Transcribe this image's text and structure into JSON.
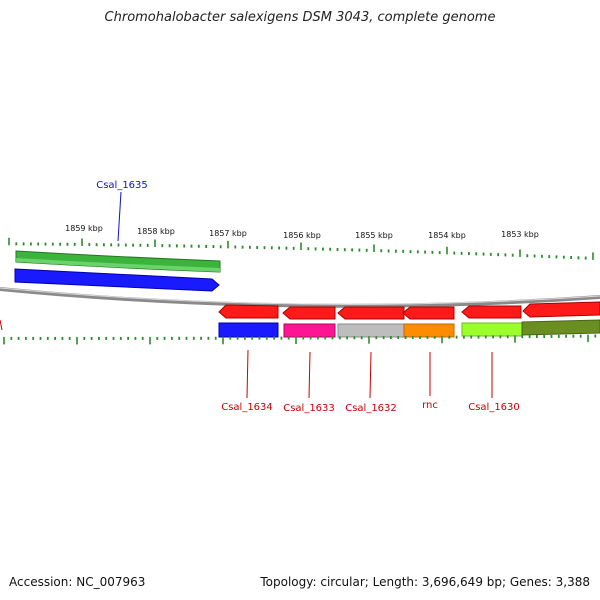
{
  "title": "Chromohalobacter salexigens DSM 3043, complete genome",
  "footer": {
    "accession": "Accession: NC_007963",
    "summary": "Topology: circular; Length: 3,696,649 bp; Genes: 3,388"
  },
  "colors": {
    "backbone": "#8a8a8a",
    "tick": "#2e8b2e",
    "label_top": "#1010cc",
    "label_bottom": "#cc0000"
  },
  "scale_labels": [
    "1859 kbp",
    "1858 kbp",
    "1857 kbp",
    "1856 kbp",
    "1855 kbp",
    "1854 kbp",
    "1853 kbp"
  ],
  "labeled_genes": [
    {
      "name": "Csal_1635",
      "color": "#1010cc"
    },
    {
      "name": "Csal_1634",
      "color": "#cc0000"
    },
    {
      "name": "Csal_1633",
      "color": "#cc0000"
    },
    {
      "name": "Csal_1632",
      "color": "#cc0000"
    },
    {
      "name": "rnc",
      "color": "#cc0000"
    },
    {
      "name": "Csal_1630",
      "color": "#cc0000"
    }
  ],
  "feature_colors": {
    "forward_cds_track": [
      "#3cb43c",
      "#1a1aff"
    ],
    "reverse_cds_track": [
      "#ff1a1a"
    ],
    "category_track": [
      "#1a1aff",
      "#ff1493",
      "#bdbdbd",
      "#ff8c00",
      "#9aff2a",
      "#6b8e23"
    ]
  }
}
